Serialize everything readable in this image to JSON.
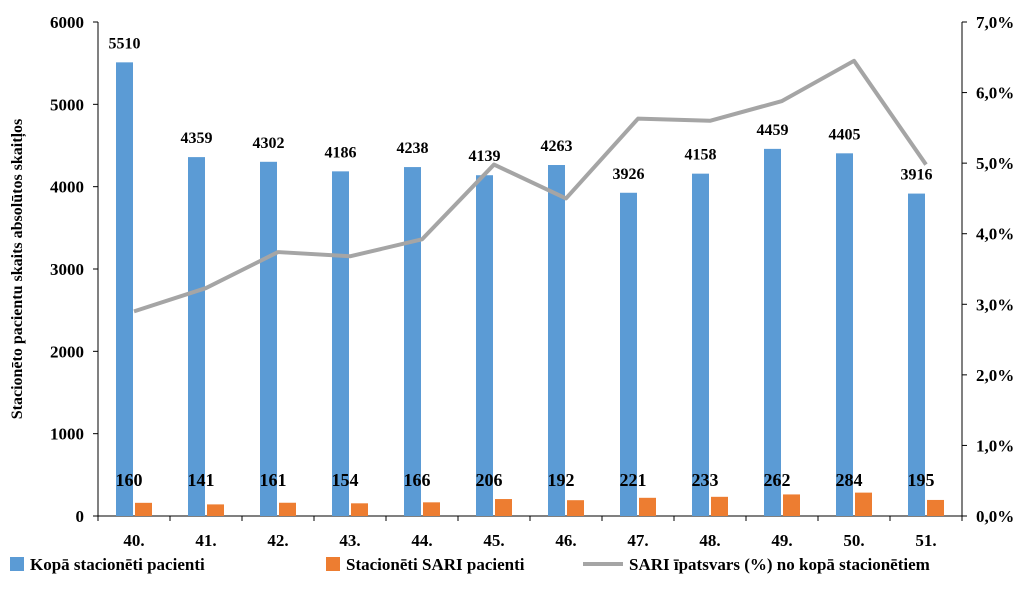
{
  "chart_data": {
    "type": "bar",
    "categories": [
      "40.",
      "41.",
      "42.",
      "43.",
      "44.",
      "45.",
      "46.",
      "47.",
      "48.",
      "49.",
      "50.",
      "51."
    ],
    "ylabel": "Stacionēto pacientu skaits absolūtos skaitļos",
    "ylim": [
      0,
      6000
    ],
    "yticks": [
      "0",
      "1000",
      "2000",
      "3000",
      "4000",
      "5000",
      "6000"
    ],
    "y2lim": [
      0,
      7.0
    ],
    "y2ticks": [
      "0,0%",
      "1,0%",
      "2,0%",
      "3,0%",
      "4,0%",
      "5,0%",
      "6,0%",
      "7,0%"
    ],
    "grid": false,
    "legend_position": "bottom",
    "series": [
      {
        "name": "Kopā stacionēti pacienti",
        "kind": "bar",
        "color": "#5B9BD5",
        "values": [
          5510,
          4359,
          4302,
          4186,
          4238,
          4139,
          4263,
          3926,
          4158,
          4459,
          4405,
          3916
        ],
        "labels": [
          "5510",
          "4359",
          "4302",
          "4186",
          "4238",
          "4139",
          "4263",
          "3926",
          "4158",
          "4459",
          "4405",
          "3916"
        ]
      },
      {
        "name": "Stacionēti SARI pacienti",
        "kind": "bar",
        "color": "#ED7D31",
        "values": [
          160,
          141,
          161,
          154,
          166,
          206,
          192,
          221,
          233,
          262,
          284,
          195
        ],
        "labels": [
          "160",
          "141",
          "161",
          "154",
          "166",
          "206",
          "192",
          "221",
          "233",
          "262",
          "284",
          "195"
        ]
      },
      {
        "name": "SARI īpatsvars (%) no kopā stacionētiem",
        "kind": "line",
        "axis": "right",
        "color": "#A5A5A5",
        "values": [
          2.9,
          3.23,
          3.74,
          3.68,
          3.92,
          4.98,
          4.5,
          5.63,
          5.6,
          5.88,
          6.45,
          4.98
        ]
      }
    ]
  }
}
